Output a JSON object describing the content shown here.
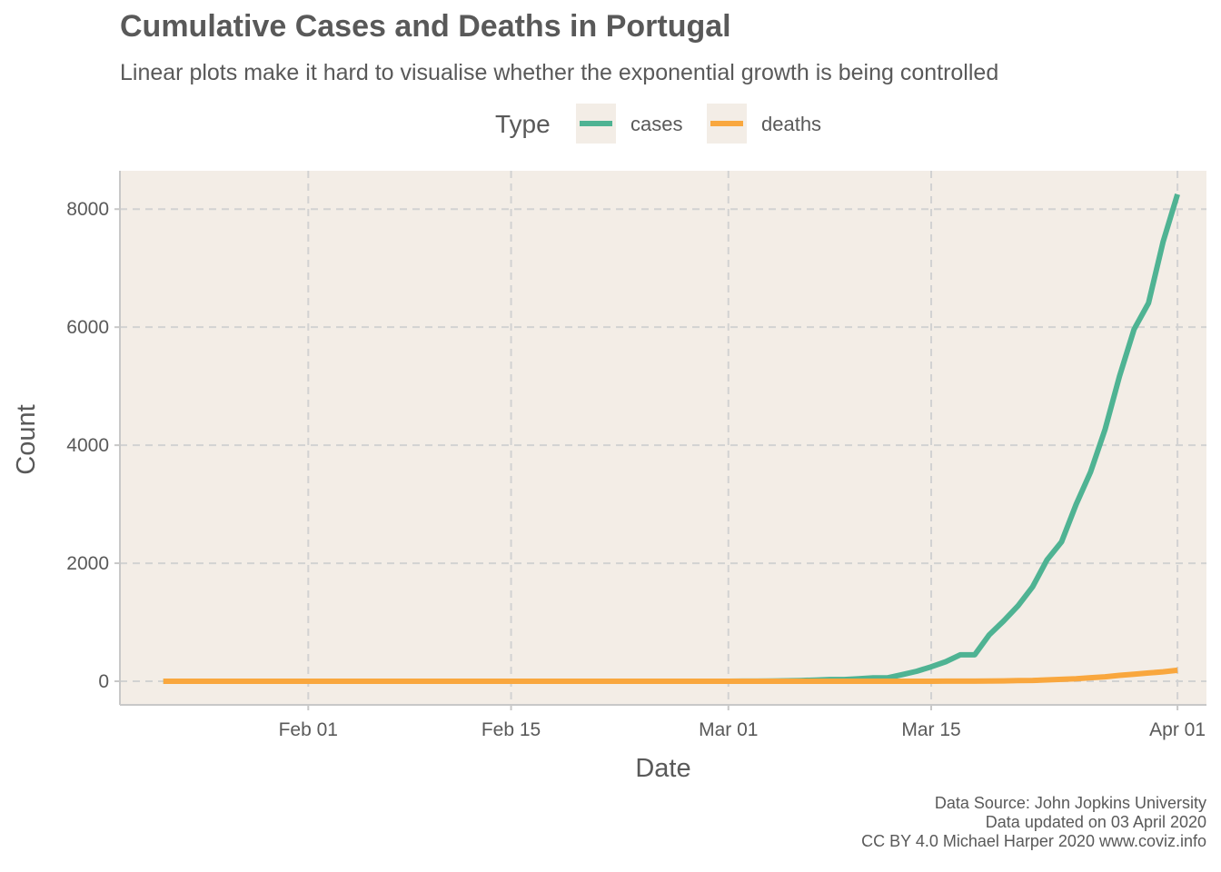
{
  "chart_data": {
    "type": "line",
    "title": "Cumulative Cases and Deaths in Portugal",
    "subtitle": "Linear plots make it hard to visualise whether the exponential growth is being controlled",
    "xlabel": "Date",
    "ylabel": "Count",
    "legend": {
      "title": "Type",
      "position": "top"
    },
    "xlim": [
      "2020-01-19",
      "2020-04-03"
    ],
    "ylim": [
      -400,
      8650
    ],
    "x_ticks": [
      "2020-02-01",
      "2020-02-15",
      "2020-03-01",
      "2020-03-15",
      "2020-04-01"
    ],
    "x_tick_labels": [
      "Feb 01",
      "Feb 15",
      "Mar 01",
      "Mar 15",
      "Apr 01"
    ],
    "y_ticks": [
      0,
      2000,
      4000,
      6000,
      8000
    ],
    "y_tick_labels": [
      "0",
      "2000",
      "4000",
      "6000",
      "8000"
    ],
    "grid": true,
    "background": "#f3ede6",
    "series": [
      {
        "name": "cases",
        "color": "#4fb393",
        "points": [
          [
            "2020-01-22",
            0
          ],
          [
            "2020-02-01",
            0
          ],
          [
            "2020-02-15",
            0
          ],
          [
            "2020-03-01",
            0
          ],
          [
            "2020-03-02",
            2
          ],
          [
            "2020-03-03",
            2
          ],
          [
            "2020-03-04",
            5
          ],
          [
            "2020-03-05",
            8
          ],
          [
            "2020-03-06",
            13
          ],
          [
            "2020-03-07",
            20
          ],
          [
            "2020-03-08",
            30
          ],
          [
            "2020-03-09",
            30
          ],
          [
            "2020-03-10",
            41
          ],
          [
            "2020-03-11",
            59
          ],
          [
            "2020-03-12",
            59
          ],
          [
            "2020-03-13",
            112
          ],
          [
            "2020-03-14",
            169
          ],
          [
            "2020-03-15",
            245
          ],
          [
            "2020-03-16",
            331
          ],
          [
            "2020-03-17",
            448
          ],
          [
            "2020-03-18",
            448
          ],
          [
            "2020-03-19",
            785
          ],
          [
            "2020-03-20",
            1020
          ],
          [
            "2020-03-21",
            1280
          ],
          [
            "2020-03-22",
            1600
          ],
          [
            "2020-03-23",
            2060
          ],
          [
            "2020-03-24",
            2362
          ],
          [
            "2020-03-25",
            2995
          ],
          [
            "2020-03-26",
            3544
          ],
          [
            "2020-03-27",
            4268
          ],
          [
            "2020-03-28",
            5170
          ],
          [
            "2020-03-29",
            5962
          ],
          [
            "2020-03-30",
            6408
          ],
          [
            "2020-03-31",
            7443
          ],
          [
            "2020-04-01",
            8251
          ]
        ]
      },
      {
        "name": "deaths",
        "color": "#f9a73e",
        "points": [
          [
            "2020-01-22",
            0
          ],
          [
            "2020-02-01",
            0
          ],
          [
            "2020-02-15",
            0
          ],
          [
            "2020-03-01",
            0
          ],
          [
            "2020-03-15",
            0
          ],
          [
            "2020-03-16",
            1
          ],
          [
            "2020-03-17",
            1
          ],
          [
            "2020-03-18",
            2
          ],
          [
            "2020-03-19",
            3
          ],
          [
            "2020-03-20",
            6
          ],
          [
            "2020-03-21",
            12
          ],
          [
            "2020-03-22",
            14
          ],
          [
            "2020-03-23",
            23
          ],
          [
            "2020-03-24",
            33
          ],
          [
            "2020-03-25",
            43
          ],
          [
            "2020-03-26",
            60
          ],
          [
            "2020-03-27",
            76
          ],
          [
            "2020-03-28",
            100
          ],
          [
            "2020-03-29",
            119
          ],
          [
            "2020-03-30",
            140
          ],
          [
            "2020-03-31",
            160
          ],
          [
            "2020-04-01",
            187
          ]
        ]
      }
    ]
  },
  "caption": [
    "Data Source: John Jopkins University",
    "Data updated on 03 April 2020",
    "CC BY 4.0 Michael Harper 2020 www.coviz.info"
  ]
}
